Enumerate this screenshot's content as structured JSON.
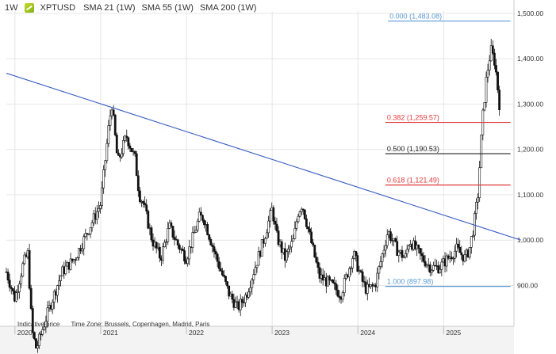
{
  "header": {
    "timeframe": "1W",
    "symbol": "XPTUSD",
    "indicators": [
      "SMA 21 (1W)",
      "SMA 55 (1W)",
      "SMA 200 (1W)"
    ],
    "logo_icon": "platinum-logo-icon"
  },
  "footer": {
    "price_type": "Indicative price",
    "timezone": "Time Zone: Brussels, Copenhagen, Madrid, Paris"
  },
  "colors": {
    "candle": "#111111",
    "trendline": "#3d5fc4",
    "fib_0": "#5b9bd5",
    "fib_1": "#5b9bd5",
    "fib_382": "#e03a3a",
    "fib_618": "#e03a3a",
    "fib_500": "#222222",
    "grid": "#e6e6e6"
  },
  "chart_data": {
    "type": "candlestick",
    "x_axis": {
      "tick_labels": [
        "2020",
        "2021",
        "2022",
        "2023",
        "2024",
        "2025"
      ]
    },
    "y_axis": {
      "tick_labels": [
        "1,500.00",
        "1,400.00",
        "1,300.00",
        "1,200.00",
        "1,100.00",
        "1,000.00",
        "900.00"
      ],
      "ylim": [
        810,
        1505
      ],
      "position": "right"
    },
    "grid": true,
    "fibonacci_levels": [
      {
        "label": "0.000 (1,483.08)",
        "value": 1483.08,
        "color": "#5b9bd5"
      },
      {
        "label": "0.382 (1,259.57)",
        "value": 1259.57,
        "color": "#e03a3a"
      },
      {
        "label": "0.500 (1,190.53)",
        "value": 1190.53,
        "color": "#222222"
      },
      {
        "label": "0.618 (1,121.49)",
        "value": 1121.49,
        "color": "#e03a3a"
      },
      {
        "label": "1.000 (897.98)",
        "value": 897.98,
        "color": "#5b9bd5"
      }
    ],
    "trendline": {
      "start": {
        "x": 2019.9,
        "y": 1368
      },
      "end": {
        "x": 2025.9,
        "y": 1000
      }
    },
    "close_path": [
      [
        2019.9,
        930
      ],
      [
        2020.0,
        870
      ],
      [
        2020.1,
        950
      ],
      [
        2020.15,
        970
      ],
      [
        2020.2,
        800
      ],
      [
        2020.25,
        760
      ],
      [
        2020.4,
        850
      ],
      [
        2020.55,
        930
      ],
      [
        2020.7,
        960
      ],
      [
        2020.9,
        1040
      ],
      [
        2021.0,
        1080
      ],
      [
        2021.1,
        1260
      ],
      [
        2021.13,
        1300
      ],
      [
        2021.2,
        1170
      ],
      [
        2021.3,
        1230
      ],
      [
        2021.4,
        1180
      ],
      [
        2021.45,
        1100
      ],
      [
        2021.5,
        1080
      ],
      [
        2021.6,
        1000
      ],
      [
        2021.7,
        960
      ],
      [
        2021.8,
        1030
      ],
      [
        2021.9,
        990
      ],
      [
        2022.0,
        960
      ],
      [
        2022.15,
        1050
      ],
      [
        2022.2,
        1050
      ],
      [
        2022.35,
        960
      ],
      [
        2022.5,
        880
      ],
      [
        2022.6,
        850
      ],
      [
        2022.7,
        880
      ],
      [
        2022.8,
        940
      ],
      [
        2022.9,
        1000
      ],
      [
        2023.0,
        1070
      ],
      [
        2023.05,
        1010
      ],
      [
        2023.15,
        960
      ],
      [
        2023.25,
        1000
      ],
      [
        2023.3,
        1060
      ],
      [
        2023.35,
        1080
      ],
      [
        2023.45,
        1000
      ],
      [
        2023.55,
        920
      ],
      [
        2023.7,
        900
      ],
      [
        2023.8,
        880
      ],
      [
        2023.95,
        970
      ],
      [
        2024.05,
        910
      ],
      [
        2024.1,
        890
      ],
      [
        2024.2,
        900
      ],
      [
        2024.35,
        1020
      ],
      [
        2024.45,
        980
      ],
      [
        2024.55,
        960
      ],
      [
        2024.6,
        1000
      ],
      [
        2024.75,
        960
      ],
      [
        2024.85,
        940
      ],
      [
        2024.95,
        940
      ],
      [
        2025.05,
        960
      ],
      [
        2025.15,
        980
      ],
      [
        2025.25,
        960
      ],
      [
        2025.3,
        980
      ],
      [
        2025.35,
        1030
      ],
      [
        2025.4,
        1100
      ],
      [
        2025.45,
        1260
      ],
      [
        2025.5,
        1360
      ],
      [
        2025.55,
        1420
      ],
      [
        2025.6,
        1390
      ],
      [
        2025.65,
        1300
      ]
    ],
    "annotations": [
      "Indicative price",
      "Time Zone: Brussels, Copenhagen, Madrid, Paris"
    ]
  }
}
